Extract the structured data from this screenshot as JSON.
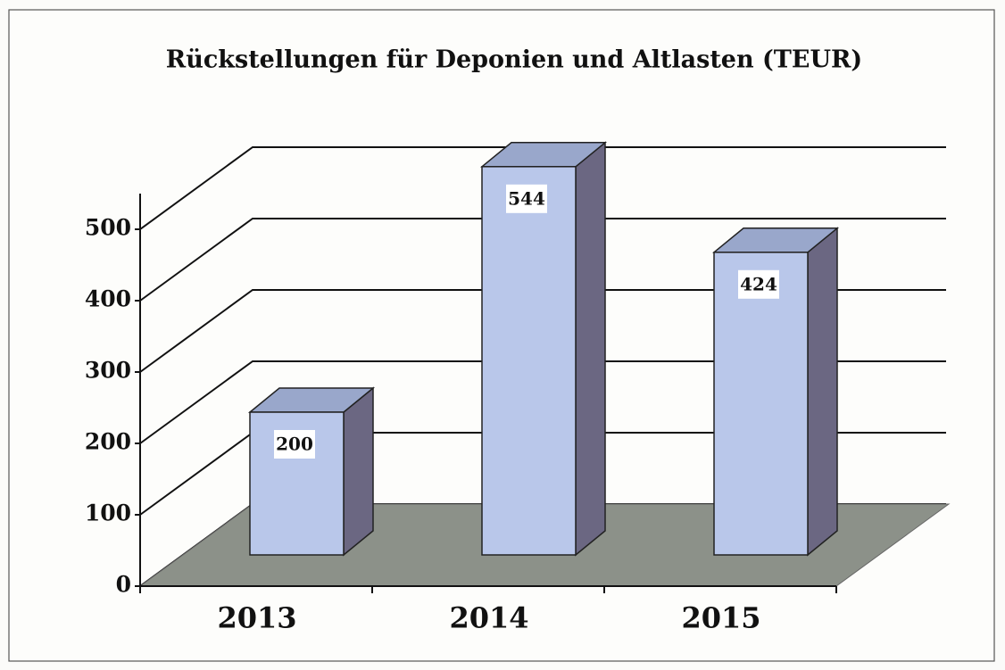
{
  "chart_data": {
    "type": "bar3d",
    "title": "Rückstellungen für Deponien und Altlasten (TEUR)",
    "categories": [
      "2013",
      "2014",
      "2015"
    ],
    "values": [
      200,
      544,
      424
    ],
    "ylim": [
      0,
      550
    ],
    "yticks": [
      0,
      100,
      200,
      300,
      400,
      500
    ],
    "grid": true,
    "color": "#b9c7ea"
  }
}
